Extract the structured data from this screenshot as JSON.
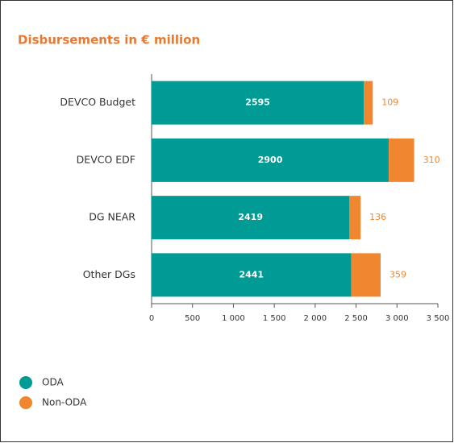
{
  "chart_data": {
    "type": "stacked_barh",
    "title": "Disbursements in € million",
    "categories": [
      "DEVCO Budget",
      "DEVCO EDF",
      "DG NEAR",
      "Other DGs"
    ],
    "series": [
      {
        "name": "ODA",
        "color": "#009b94",
        "values": [
          2595,
          2900,
          2419,
          2441
        ]
      },
      {
        "name": "Non-ODA",
        "color": "#f0862f",
        "values": [
          109,
          310,
          136,
          359
        ]
      }
    ],
    "xlim": [
      0,
      3500
    ],
    "xticks": [
      0,
      500,
      {
        "value": 1000,
        "label": "1 000"
      },
      {
        "value": 1500,
        "label": "1 500"
      },
      {
        "value": 2000,
        "label": "2 000"
      },
      {
        "value": 2500,
        "label": "2 500"
      },
      {
        "value": 3000,
        "label": "3 000"
      },
      {
        "value": 3500,
        "label": "3 500"
      }
    ],
    "legend": "bottom-left"
  }
}
